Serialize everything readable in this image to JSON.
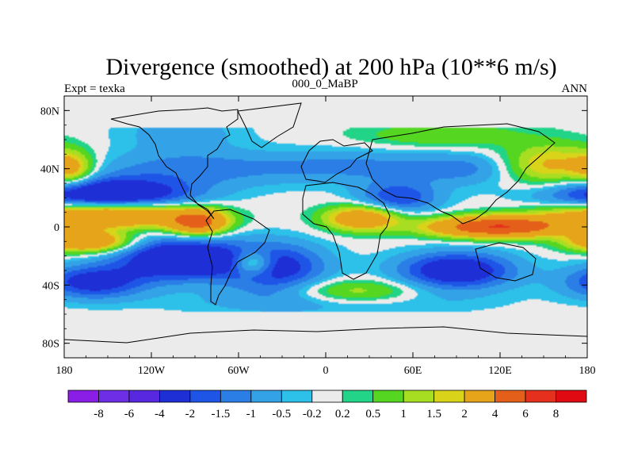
{
  "chart_data": {
    "type": "heatmap",
    "title": "Divergence (smoothed) at 200 hPa (10**6 m/s)",
    "left_label": "Expt = texka",
    "center_label": "000_0_MaBP",
    "right_label": "ANN",
    "x_range": [
      -180,
      180
    ],
    "y_range": [
      -90,
      90
    ],
    "x_ticks": [
      {
        "value": -180,
        "label": "180"
      },
      {
        "value": -120,
        "label": "120W"
      },
      {
        "value": -60,
        "label": "60W"
      },
      {
        "value": 0,
        "label": "0"
      },
      {
        "value": 60,
        "label": "60E"
      },
      {
        "value": 120,
        "label": "120E"
      },
      {
        "value": 180,
        "label": "180"
      }
    ],
    "y_ticks": [
      {
        "value": 80,
        "label": "80N"
      },
      {
        "value": 40,
        "label": "40N"
      },
      {
        "value": 0,
        "label": "0"
      },
      {
        "value": -40,
        "label": "40S"
      },
      {
        "value": -80,
        "label": "80S"
      }
    ],
    "colorbar": {
      "levels": [
        "-8",
        "-6",
        "-4",
        "-2",
        "-1.5",
        "-1",
        "-0.5",
        "-0.2",
        "0.2",
        "0.5",
        "1",
        "1.5",
        "2",
        "4",
        "6",
        "8"
      ],
      "colors": [
        "#8a1ee6",
        "#6e2ee6",
        "#5828e0",
        "#1e2fd6",
        "#1f55e6",
        "#2a7ee6",
        "#34a2e6",
        "#2dc0e8",
        "#ebebeb",
        "#22d487",
        "#55d620",
        "#a8de22",
        "#d9d41a",
        "#e6a41a",
        "#e4601a",
        "#e5301e",
        "#e00a12"
      ]
    },
    "fields": [
      {
        "value": -3.5,
        "lon": -150,
        "lat": 22,
        "wlon": 40,
        "wlat": 8
      },
      {
        "value": -3.5,
        "lon": -100,
        "lat": -22,
        "wlon": 30,
        "wlat": 10
      },
      {
        "value": -2.5,
        "lon": -35,
        "lat": -28,
        "wlon": 25,
        "wlat": 12
      },
      {
        "value": -3.0,
        "lon": 90,
        "lat": -30,
        "wlon": 28,
        "wlat": 9
      },
      {
        "value": -2.5,
        "lon": -160,
        "lat": -38,
        "wlon": 25,
        "wlat": 8
      },
      {
        "value": -2.0,
        "lon": 50,
        "lat": 20,
        "wlon": 20,
        "wlat": 8
      },
      {
        "value": -1.2,
        "lon": -90,
        "lat": 40,
        "wlon": 55,
        "wlat": 9
      },
      {
        "value": -1.0,
        "lon": 20,
        "lat": 42,
        "wlon": 40,
        "wlat": 8
      },
      {
        "value": -1.2,
        "lon": 100,
        "lat": 40,
        "wlon": 30,
        "wlat": 8
      },
      {
        "value": -0.8,
        "lon": -100,
        "lat": 65,
        "wlon": 30,
        "wlat": 10
      },
      {
        "value": -0.8,
        "lon": 0,
        "lat": -52,
        "wlon": 70,
        "wlat": 6
      },
      {
        "value": 4.5,
        "lon": -150,
        "lat": 8,
        "wlon": 40,
        "wlat": 6
      },
      {
        "value": 4.5,
        "lon": -88,
        "lat": 3,
        "wlon": 14,
        "wlat": 6
      },
      {
        "value": 6.0,
        "lon": 118,
        "lat": 0,
        "wlon": 32,
        "wlat": 5
      },
      {
        "value": 3.5,
        "lon": 25,
        "lat": 6,
        "wlon": 18,
        "wlat": 6
      },
      {
        "value": 4.0,
        "lon": -165,
        "lat": -10,
        "wlon": 20,
        "wlat": 5
      },
      {
        "value": 2.5,
        "lon": 155,
        "lat": 42,
        "wlon": 25,
        "wlat": 10
      },
      {
        "value": 2.0,
        "lon": -175,
        "lat": 40,
        "wlon": 10,
        "wlat": 8
      },
      {
        "value": 2.5,
        "lon": -50,
        "lat": -25,
        "wlon": 10,
        "wlat": 6
      },
      {
        "value": 1.5,
        "lon": 20,
        "lat": -45,
        "wlon": 30,
        "wlat": 6
      },
      {
        "value": 1.0,
        "lon": 80,
        "lat": 63,
        "wlon": 40,
        "wlat": 6
      }
    ],
    "zero_zones": [
      {
        "lat_min": -90,
        "lat_max": -58
      },
      {
        "lat_min": 68,
        "lat_max": 90
      }
    ],
    "coastline": "coarse-grid continent outlines"
  }
}
